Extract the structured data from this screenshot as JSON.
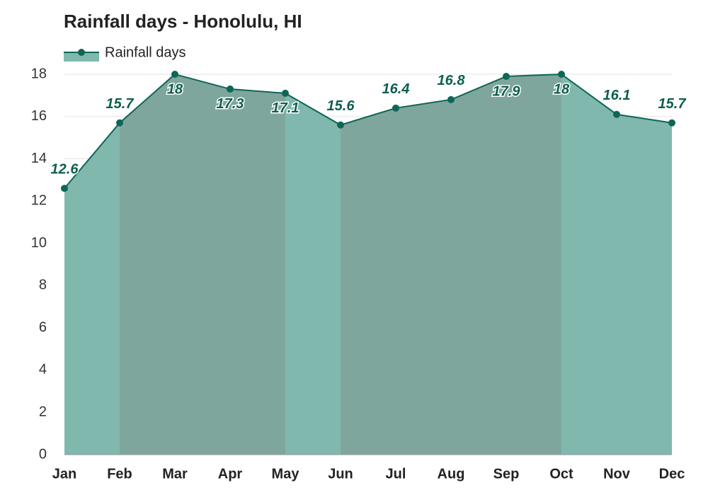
{
  "chart_data": {
    "type": "line",
    "title": "Rainfall days - Honolulu, HI",
    "categories": [
      "Jan",
      "Feb",
      "Mar",
      "Apr",
      "May",
      "Jun",
      "Jul",
      "Aug",
      "Sep",
      "Oct",
      "Nov",
      "Dec"
    ],
    "series": [
      {
        "name": "Rainfall days",
        "color": "#0d6656",
        "values": [
          12.6,
          15.7,
          18,
          17.3,
          17.1,
          15.6,
          16.4,
          16.8,
          17.9,
          18,
          16.1,
          15.7
        ]
      }
    ],
    "ylim": [
      0,
      18
    ],
    "yticks": [
      0,
      2,
      4,
      6,
      8,
      10,
      12,
      14,
      16,
      18
    ],
    "grid": true,
    "legend": "top-left"
  }
}
